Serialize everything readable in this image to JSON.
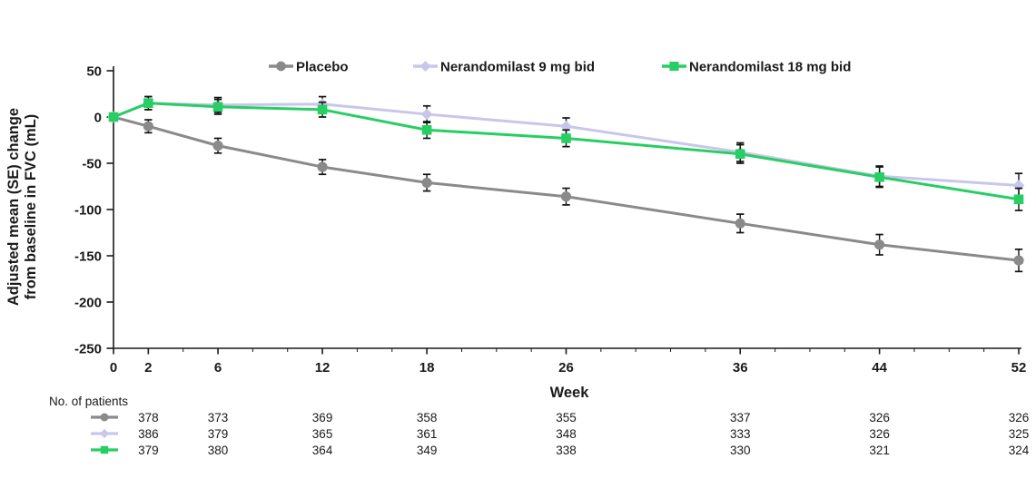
{
  "chart_data": {
    "type": "line",
    "title": "",
    "xlabel": "Week",
    "ylabel_line1": "Adjusted mean (SE) change",
    "ylabel_line2": "from baseline in FVC (mL)",
    "x": [
      0,
      2,
      6,
      12,
      18,
      26,
      36,
      44,
      52
    ],
    "xticks": [
      0,
      2,
      6,
      12,
      18,
      26,
      36,
      44,
      52
    ],
    "yticks": [
      50,
      0,
      -50,
      -100,
      -150,
      -200,
      -250
    ],
    "xlim": [
      0,
      52
    ],
    "ylim": [
      -250,
      50
    ],
    "grid": false,
    "legend_position": "top",
    "minor_xtick_interval": 2,
    "series": [
      {
        "name": "Placebo",
        "color": "#8A8A8A",
        "marker": "circle",
        "values": [
          0,
          -10,
          -31,
          -54,
          -71,
          -86,
          -115,
          -138,
          -155
        ],
        "se": [
          0,
          7,
          8,
          8,
          9,
          9,
          10,
          11,
          12
        ]
      },
      {
        "name": "Nerandomilast 9 mg bid",
        "color": "#C9C6EC",
        "marker": "diamond",
        "values": [
          0,
          15,
          13,
          14,
          3,
          -10,
          -38,
          -64,
          -74
        ],
        "se": [
          0,
          7,
          8,
          8,
          9,
          9,
          10,
          11,
          13
        ]
      },
      {
        "name": "Nerandomilast 18 mg bid",
        "color": "#27CE64",
        "marker": "square",
        "values": [
          0,
          15,
          11,
          8,
          -14,
          -23,
          -40,
          -65,
          -89
        ],
        "se": [
          0,
          7,
          8,
          8,
          9,
          9,
          10,
          11,
          12
        ]
      }
    ]
  },
  "patients_table": {
    "title": "No. of patients",
    "weeks": [
      2,
      6,
      12,
      18,
      26,
      36,
      44,
      52
    ],
    "rows": [
      {
        "series": "Placebo",
        "counts": [
          378,
          373,
          369,
          358,
          355,
          337,
          326,
          326
        ]
      },
      {
        "series": "Nerandomilast 9 mg bid",
        "counts": [
          386,
          379,
          365,
          361,
          348,
          333,
          326,
          325
        ]
      },
      {
        "series": "Nerandomilast 18 mg bid",
        "counts": [
          379,
          380,
          364,
          349,
          338,
          330,
          321,
          324
        ]
      }
    ]
  },
  "colors": {
    "background": "#FFFFFF",
    "axis": "#1A1A1A",
    "text": "#1A1A1A",
    "error_bar": "#111111"
  }
}
